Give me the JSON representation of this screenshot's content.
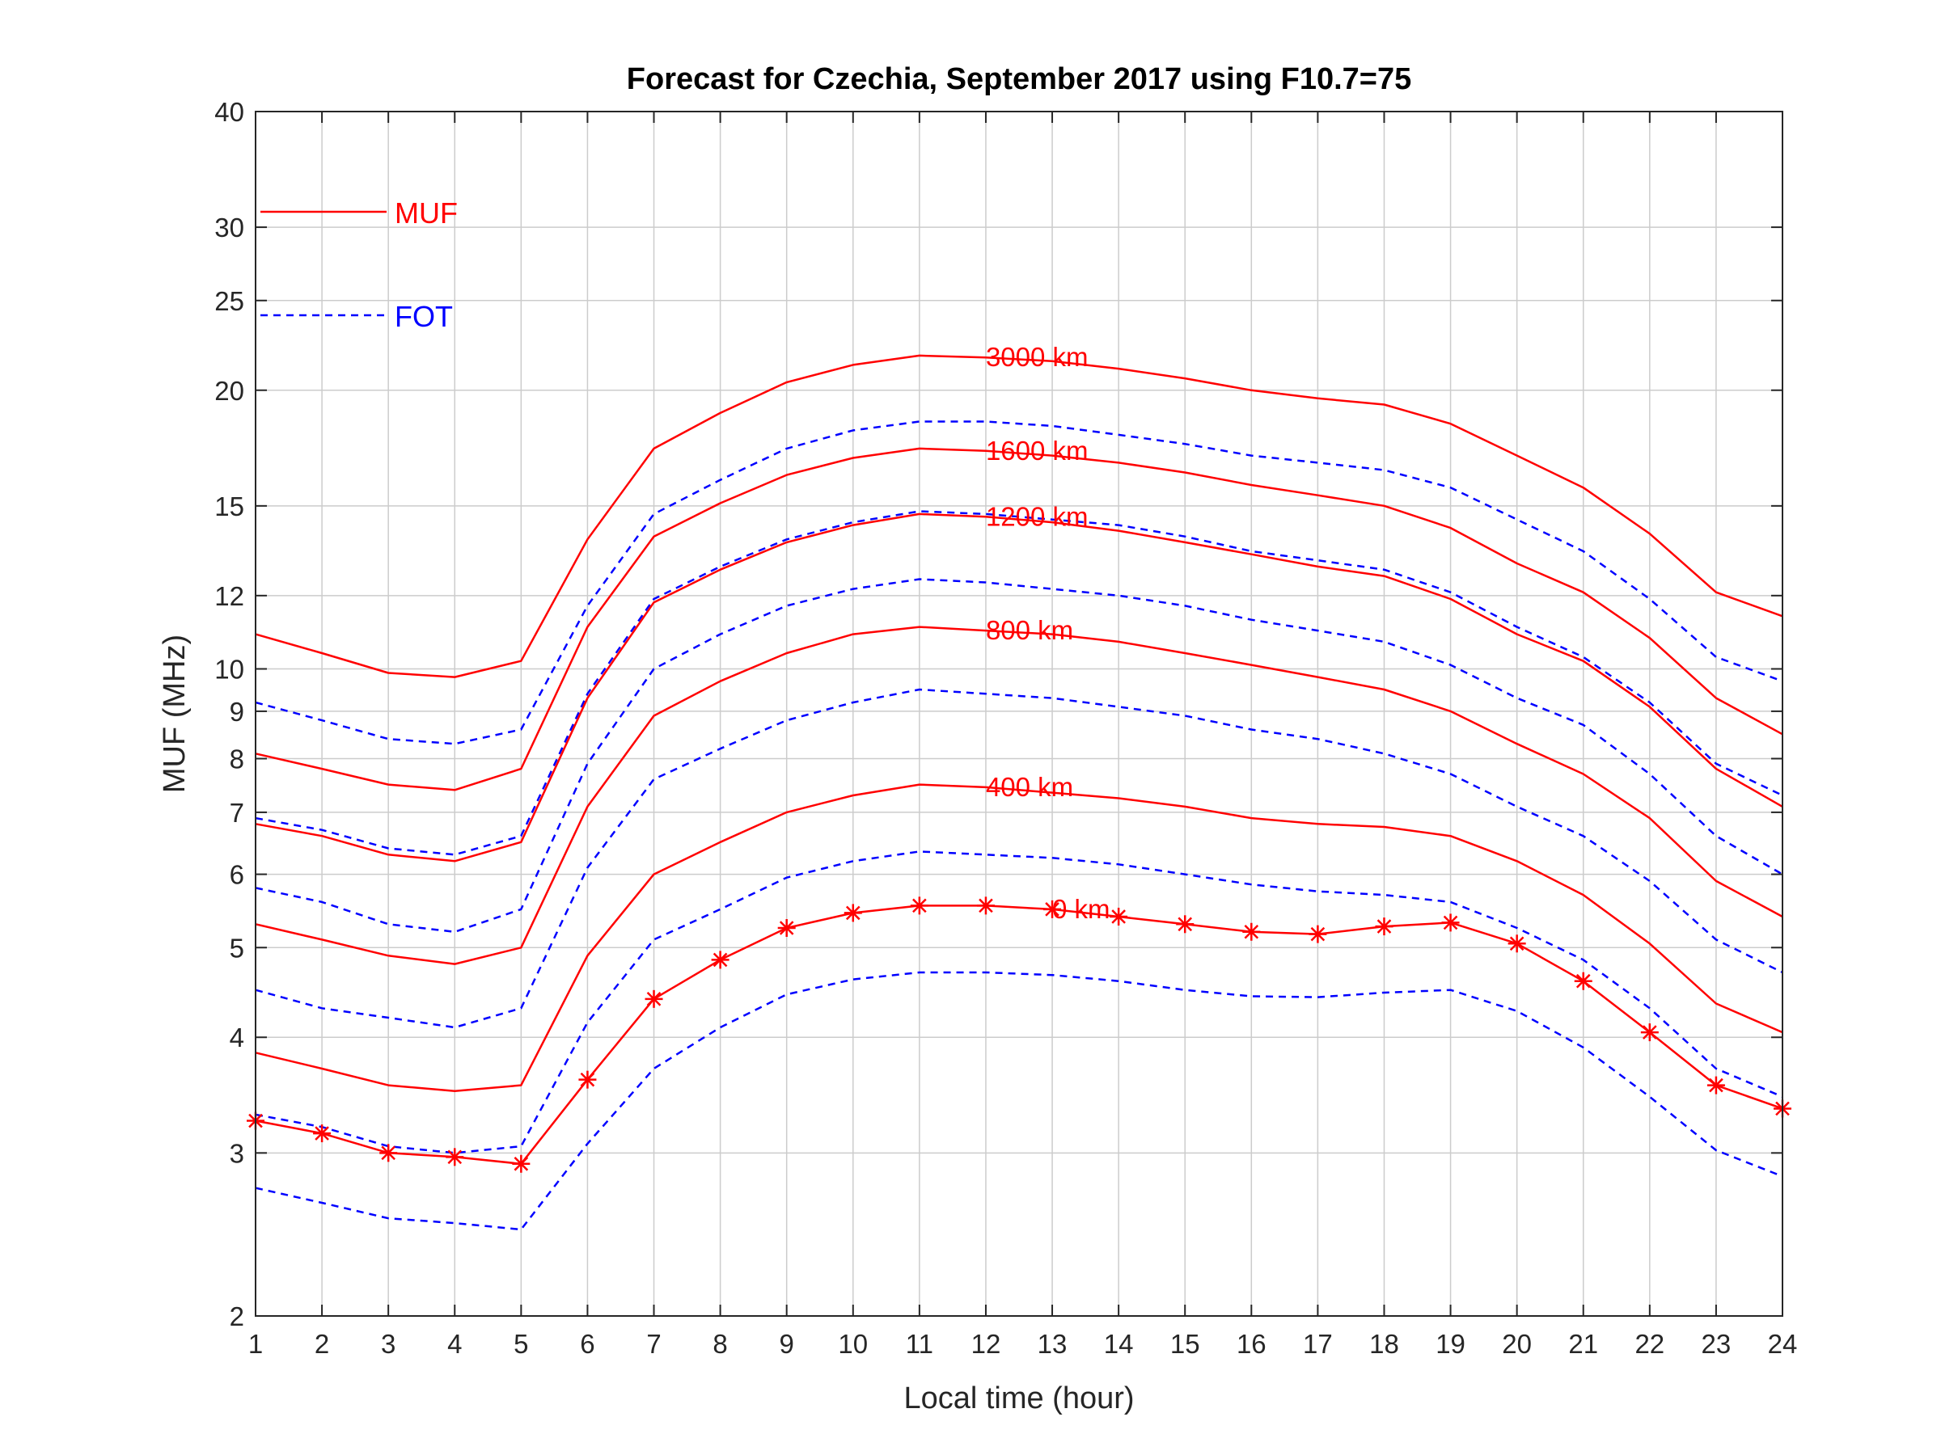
{
  "chart_data": {
    "type": "line",
    "title": "Forecast for Czechia, September 2017 using F10.7=75",
    "xlabel": "Local time (hour)",
    "ylabel": "MUF (MHz)",
    "xlim": [
      1,
      24
    ],
    "ylim": [
      2,
      40
    ],
    "yscale": "log",
    "grid": true,
    "x": [
      1,
      2,
      3,
      4,
      5,
      6,
      7,
      8,
      9,
      10,
      11,
      12,
      13,
      14,
      15,
      16,
      17,
      18,
      19,
      20,
      21,
      22,
      23,
      24
    ],
    "xticks": [
      "1",
      "2",
      "3",
      "4",
      "5",
      "6",
      "7",
      "8",
      "9",
      "10",
      "11",
      "12",
      "13",
      "14",
      "15",
      "16",
      "17",
      "18",
      "19",
      "20",
      "21",
      "22",
      "23",
      "24"
    ],
    "yticks": [
      "2",
      "3",
      "4",
      "5",
      "6",
      "7",
      "8",
      "9",
      "10",
      "12",
      "15",
      "20",
      "25",
      "30",
      "40"
    ],
    "colors": {
      "muf": "#ff0000",
      "fot": "#0000ff"
    },
    "legend": {
      "position": "top-left",
      "entries": [
        "MUF",
        "FOT"
      ]
    },
    "series": [
      {
        "name": "MUF",
        "distance": "3000 km",
        "style": "solid",
        "values": [
          10.9,
          10.4,
          9.9,
          9.8,
          10.2,
          13.8,
          17.3,
          18.9,
          20.4,
          21.3,
          21.8,
          21.7,
          21.5,
          21.1,
          20.6,
          20.0,
          19.6,
          19.3,
          18.4,
          17.0,
          15.7,
          14.0,
          12.1,
          11.4
        ]
      },
      {
        "name": "FOT",
        "distance": "3000 km",
        "style": "dashed",
        "values": [
          9.2,
          8.8,
          8.4,
          8.3,
          8.6,
          11.7,
          14.7,
          16.0,
          17.3,
          18.1,
          18.5,
          18.5,
          18.3,
          17.9,
          17.5,
          17.0,
          16.7,
          16.4,
          15.7,
          14.5,
          13.4,
          11.9,
          10.3,
          9.7
        ]
      },
      {
        "name": "MUF",
        "distance": "1600 km",
        "style": "solid",
        "values": [
          8.1,
          7.8,
          7.5,
          7.4,
          7.8,
          11.1,
          13.9,
          15.1,
          16.2,
          16.9,
          17.3,
          17.2,
          17.0,
          16.7,
          16.3,
          15.8,
          15.4,
          15.0,
          14.2,
          13.0,
          12.1,
          10.8,
          9.3,
          8.5
        ]
      },
      {
        "name": "FOT",
        "distance": "1600 km",
        "style": "dashed",
        "values": [
          6.9,
          6.7,
          6.4,
          6.3,
          6.6,
          9.4,
          11.9,
          12.9,
          13.8,
          14.4,
          14.8,
          14.7,
          14.5,
          14.3,
          13.9,
          13.4,
          13.1,
          12.8,
          12.1,
          11.1,
          10.3,
          9.2,
          7.9,
          7.3
        ]
      },
      {
        "name": "MUF",
        "distance": "1200 km",
        "style": "solid",
        "values": [
          6.8,
          6.6,
          6.3,
          6.2,
          6.5,
          9.3,
          11.8,
          12.8,
          13.7,
          14.3,
          14.7,
          14.6,
          14.4,
          14.1,
          13.7,
          13.3,
          12.9,
          12.6,
          11.9,
          10.9,
          10.2,
          9.1,
          7.8,
          7.1
        ]
      },
      {
        "name": "FOT",
        "distance": "1200 km",
        "style": "dashed",
        "values": [
          5.8,
          5.6,
          5.3,
          5.2,
          5.5,
          7.9,
          10.0,
          10.9,
          11.7,
          12.2,
          12.5,
          12.4,
          12.2,
          12.0,
          11.7,
          11.3,
          11.0,
          10.7,
          10.1,
          9.3,
          8.7,
          7.7,
          6.6,
          6.0
        ]
      },
      {
        "name": "MUF",
        "distance": "800 km",
        "style": "solid",
        "values": [
          5.3,
          5.1,
          4.9,
          4.8,
          5.0,
          7.1,
          8.9,
          9.7,
          10.4,
          10.9,
          11.1,
          11.0,
          10.9,
          10.7,
          10.4,
          10.1,
          9.8,
          9.5,
          9.0,
          8.3,
          7.7,
          6.9,
          5.9,
          5.4
        ]
      },
      {
        "name": "FOT",
        "distance": "800 km",
        "style": "dashed",
        "values": [
          4.5,
          4.3,
          4.2,
          4.1,
          4.3,
          6.1,
          7.6,
          8.2,
          8.8,
          9.2,
          9.5,
          9.4,
          9.3,
          9.1,
          8.9,
          8.6,
          8.4,
          8.1,
          7.7,
          7.1,
          6.6,
          5.9,
          5.1,
          4.7
        ]
      },
      {
        "name": "MUF",
        "distance": "400 km",
        "style": "solid",
        "values": [
          3.85,
          3.7,
          3.55,
          3.5,
          3.55,
          4.9,
          6.0,
          6.5,
          7.0,
          7.3,
          7.5,
          7.45,
          7.35,
          7.25,
          7.1,
          6.9,
          6.8,
          6.75,
          6.6,
          6.2,
          5.7,
          5.05,
          4.35,
          4.05
        ]
      },
      {
        "name": "FOT",
        "distance": "400 km",
        "style": "dashed",
        "values": [
          3.3,
          3.2,
          3.05,
          3.0,
          3.05,
          4.15,
          5.1,
          5.5,
          5.95,
          6.2,
          6.35,
          6.3,
          6.25,
          6.15,
          6.0,
          5.85,
          5.75,
          5.7,
          5.6,
          5.25,
          4.85,
          4.3,
          3.7,
          3.45
        ]
      },
      {
        "name": "MUF",
        "distance": "0 km",
        "style": "solid-star",
        "values": [
          3.25,
          3.15,
          3.0,
          2.97,
          2.92,
          3.6,
          4.4,
          4.85,
          5.25,
          5.45,
          5.55,
          5.55,
          5.5,
          5.4,
          5.3,
          5.2,
          5.17,
          5.27,
          5.32,
          5.05,
          4.6,
          4.05,
          3.55,
          3.35
        ]
      },
      {
        "name": "FOT",
        "distance": "0 km",
        "style": "dashed",
        "values": [
          2.75,
          2.65,
          2.55,
          2.52,
          2.48,
          3.07,
          3.7,
          4.1,
          4.45,
          4.62,
          4.7,
          4.7,
          4.67,
          4.6,
          4.5,
          4.43,
          4.42,
          4.47,
          4.5,
          4.27,
          3.9,
          3.45,
          3.02,
          2.83
        ]
      }
    ],
    "annotations": [
      {
        "text": "3000 km",
        "x": 12,
        "y": 21.7
      },
      {
        "text": "1600 km",
        "x": 12,
        "y": 17.2
      },
      {
        "text": "1200 km",
        "x": 12,
        "y": 14.6
      },
      {
        "text": "800 km",
        "x": 12,
        "y": 11.0
      },
      {
        "text": "400 km",
        "x": 12,
        "y": 7.45
      },
      {
        "text": "0 km",
        "x": 13,
        "y": 5.5
      }
    ]
  }
}
